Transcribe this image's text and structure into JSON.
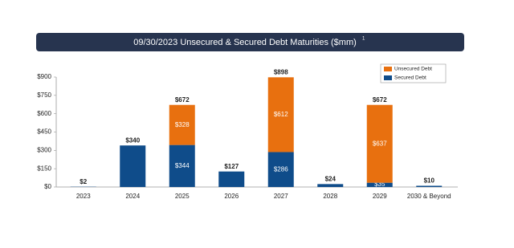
{
  "chart_data": {
    "type": "stacked_bar",
    "title": "09/30/2023 Unsecured & Secured Debt Maturities ($mm)",
    "title_superscript": "1",
    "categories": [
      "2023",
      "2024",
      "2025",
      "2026",
      "2027",
      "2028",
      "2029",
      "2030 & Beyond"
    ],
    "series": [
      {
        "name": "Secured Debt",
        "color": "#0f4c8a",
        "values": [
          2,
          340,
          344,
          127,
          286,
          24,
          35,
          10
        ],
        "value_labels": [
          null,
          null,
          "$344",
          null,
          "$286",
          null,
          "$35",
          null
        ]
      },
      {
        "name": "Unsecured Debt",
        "color": "#e8700f",
        "values": [
          null,
          null,
          328,
          null,
          612,
          null,
          637,
          null
        ],
        "value_labels": [
          null,
          null,
          "$328",
          null,
          "$612",
          null,
          "$637",
          null
        ]
      }
    ],
    "totals": [
      2,
      340,
      672,
      127,
      898,
      24,
      672,
      10
    ],
    "total_labels": [
      "$2",
      "$340",
      "$672",
      "$127",
      "$898",
      "$24",
      "$672",
      "$10"
    ],
    "ylim": [
      0,
      900
    ],
    "yticks": [
      {
        "value": 0,
        "label": "$0"
      },
      {
        "value": 150,
        "label": "$150"
      },
      {
        "value": 300,
        "label": "$300"
      },
      {
        "value": 450,
        "label": "$450"
      },
      {
        "value": 600,
        "label": "$600"
      },
      {
        "value": 750,
        "label": "$750"
      },
      {
        "value": 900,
        "label": "$900"
      }
    ],
    "legend_order": [
      1,
      0
    ]
  }
}
